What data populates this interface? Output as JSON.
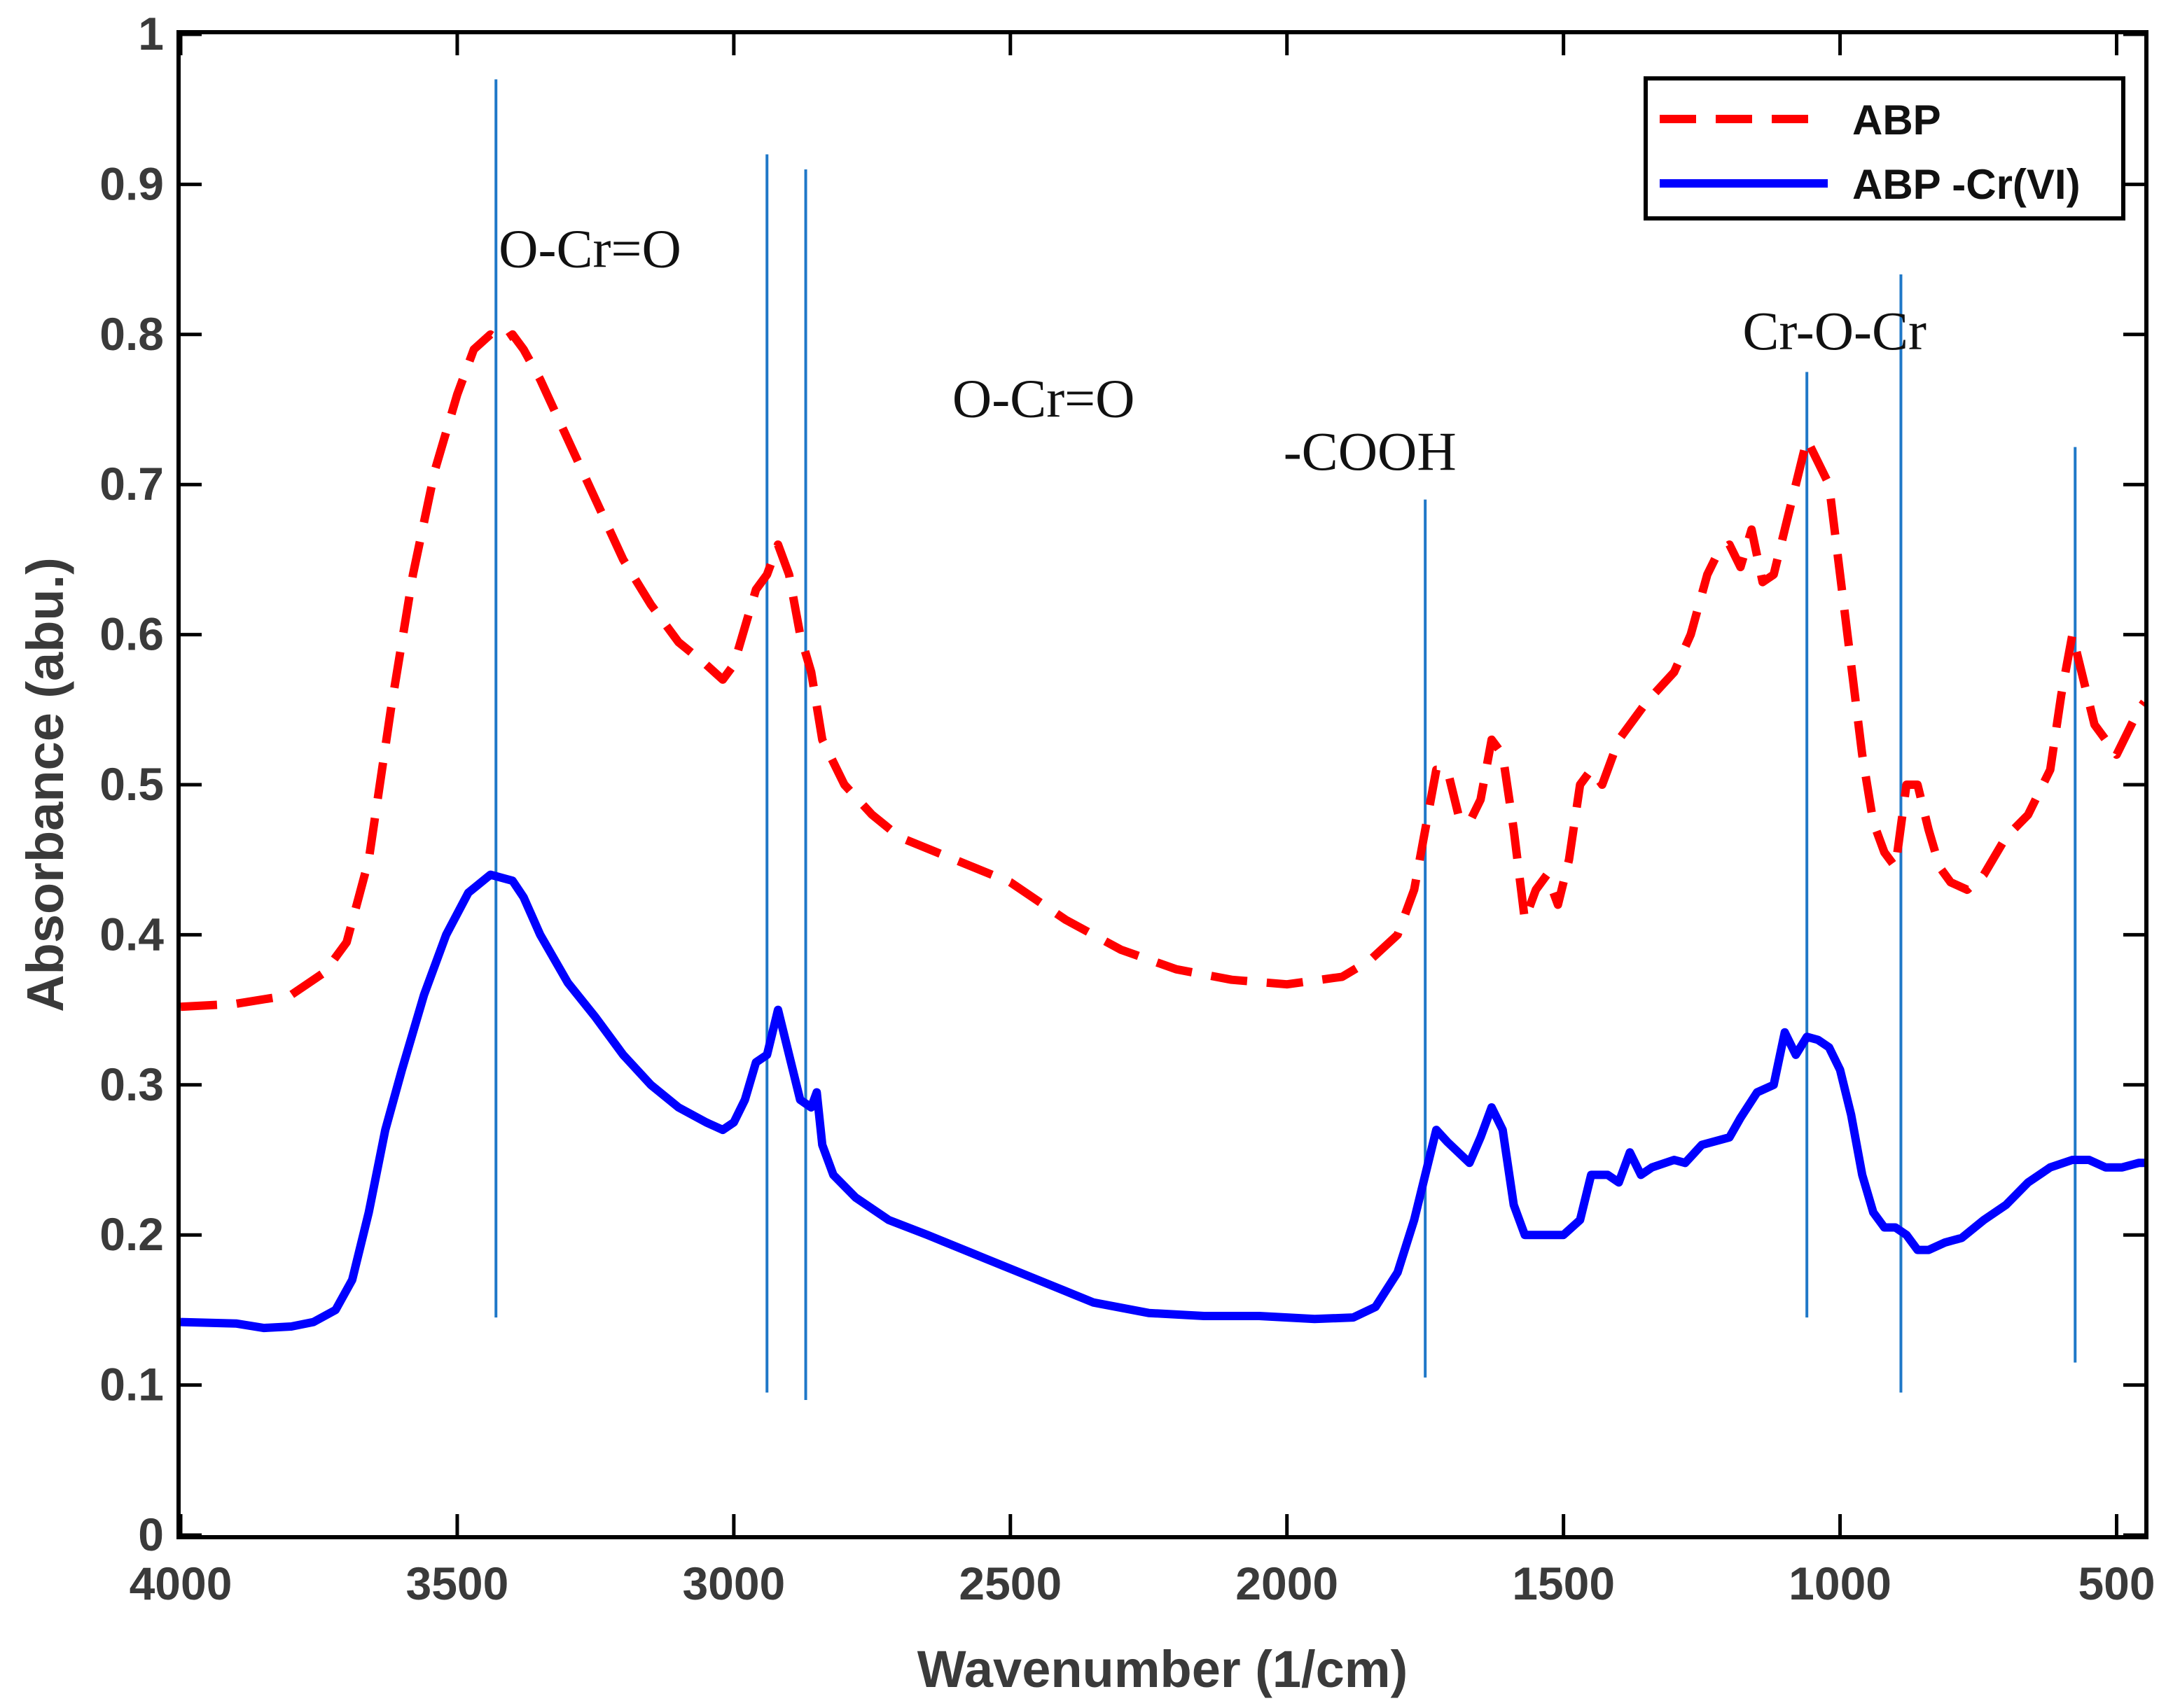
{
  "chart_data": {
    "type": "line",
    "title": "",
    "xlabel": "Wavenumber (1/cm)",
    "ylabel": "Absorbance (abu.)",
    "xlim": [
      4000,
      450
    ],
    "ylim": [
      0,
      1
    ],
    "x_reversed": true,
    "x_ticks": [
      4000,
      3500,
      3000,
      2500,
      2000,
      1500,
      1000,
      500
    ],
    "x_tick_labels": [
      "4000",
      "3500",
      "3000",
      "2500",
      "2000",
      "1500",
      "1000",
      "500"
    ],
    "y_ticks": [
      0,
      0.1,
      0.2,
      0.3,
      0.4,
      0.5,
      0.6,
      0.7,
      0.8,
      0.9,
      1
    ],
    "y_tick_labels": [
      "0",
      "0.1",
      "0.2",
      "0.3",
      "0.4",
      "0.5",
      "0.6",
      "0.7",
      "0.8",
      "0.9",
      "1"
    ],
    "grid": false,
    "legend_position": "top-right",
    "series": [
      {
        "name": "ABP",
        "color": "#ff0000",
        "style": "dashed",
        "points": [
          [
            4000,
            0.352
          ],
          [
            3900,
            0.354
          ],
          [
            3800,
            0.36
          ],
          [
            3740,
            0.375
          ],
          [
            3700,
            0.395
          ],
          [
            3660,
            0.45
          ],
          [
            3620,
            0.55
          ],
          [
            3580,
            0.64
          ],
          [
            3540,
            0.71
          ],
          [
            3500,
            0.76
          ],
          [
            3470,
            0.79
          ],
          [
            3440,
            0.8
          ],
          [
            3420,
            0.795
          ],
          [
            3400,
            0.8
          ],
          [
            3380,
            0.79
          ],
          [
            3350,
            0.77
          ],
          [
            3300,
            0.73
          ],
          [
            3250,
            0.69
          ],
          [
            3200,
            0.65
          ],
          [
            3150,
            0.62
          ],
          [
            3100,
            0.595
          ],
          [
            3050,
            0.58
          ],
          [
            3020,
            0.57
          ],
          [
            3000,
            0.58
          ],
          [
            2980,
            0.605
          ],
          [
            2960,
            0.63
          ],
          [
            2940,
            0.64
          ],
          [
            2920,
            0.66
          ],
          [
            2900,
            0.64
          ],
          [
            2880,
            0.6
          ],
          [
            2860,
            0.575
          ],
          [
            2840,
            0.53
          ],
          [
            2800,
            0.5
          ],
          [
            2750,
            0.48
          ],
          [
            2700,
            0.465
          ],
          [
            2600,
            0.45
          ],
          [
            2500,
            0.435
          ],
          [
            2400,
            0.41
          ],
          [
            2300,
            0.39
          ],
          [
            2200,
            0.377
          ],
          [
            2100,
            0.37
          ],
          [
            2000,
            0.367
          ],
          [
            1900,
            0.372
          ],
          [
            1850,
            0.383
          ],
          [
            1800,
            0.4
          ],
          [
            1770,
            0.43
          ],
          [
            1750,
            0.47
          ],
          [
            1730,
            0.51
          ],
          [
            1710,
            0.51
          ],
          [
            1690,
            0.48
          ],
          [
            1670,
            0.475
          ],
          [
            1650,
            0.49
          ],
          [
            1630,
            0.53
          ],
          [
            1610,
            0.52
          ],
          [
            1590,
            0.47
          ],
          [
            1570,
            0.41
          ],
          [
            1550,
            0.43
          ],
          [
            1530,
            0.44
          ],
          [
            1510,
            0.42
          ],
          [
            1490,
            0.45
          ],
          [
            1470,
            0.5
          ],
          [
            1450,
            0.51
          ],
          [
            1430,
            0.5
          ],
          [
            1400,
            0.53
          ],
          [
            1350,
            0.555
          ],
          [
            1300,
            0.575
          ],
          [
            1270,
            0.6
          ],
          [
            1240,
            0.64
          ],
          [
            1220,
            0.655
          ],
          [
            1200,
            0.66
          ],
          [
            1180,
            0.645
          ],
          [
            1160,
            0.67
          ],
          [
            1140,
            0.635
          ],
          [
            1120,
            0.64
          ],
          [
            1100,
            0.67
          ],
          [
            1080,
            0.7
          ],
          [
            1060,
            0.73
          ],
          [
            1040,
            0.715
          ],
          [
            1020,
            0.7
          ],
          [
            1000,
            0.64
          ],
          [
            980,
            0.58
          ],
          [
            960,
            0.52
          ],
          [
            940,
            0.475
          ],
          [
            920,
            0.455
          ],
          [
            900,
            0.445
          ],
          [
            880,
            0.5
          ],
          [
            860,
            0.5
          ],
          [
            840,
            0.47
          ],
          [
            820,
            0.445
          ],
          [
            800,
            0.435
          ],
          [
            770,
            0.43
          ],
          [
            740,
            0.44
          ],
          [
            700,
            0.465
          ],
          [
            660,
            0.48
          ],
          [
            620,
            0.51
          ],
          [
            600,
            0.56
          ],
          [
            580,
            0.6
          ],
          [
            560,
            0.57
          ],
          [
            540,
            0.54
          ],
          [
            520,
            0.53
          ],
          [
            500,
            0.52
          ],
          [
            480,
            0.535
          ],
          [
            460,
            0.55
          ],
          [
            450,
            0.555
          ]
        ]
      },
      {
        "name": "ABP -Cr(VI)",
        "color": "#0000ff",
        "style": "solid",
        "points": [
          [
            4000,
            0.142
          ],
          [
            3900,
            0.141
          ],
          [
            3850,
            0.138
          ],
          [
            3800,
            0.139
          ],
          [
            3760,
            0.142
          ],
          [
            3720,
            0.15
          ],
          [
            3690,
            0.17
          ],
          [
            3660,
            0.215
          ],
          [
            3630,
            0.27
          ],
          [
            3600,
            0.31
          ],
          [
            3560,
            0.36
          ],
          [
            3520,
            0.4
          ],
          [
            3480,
            0.428
          ],
          [
            3440,
            0.44
          ],
          [
            3400,
            0.436
          ],
          [
            3380,
            0.425
          ],
          [
            3350,
            0.4
          ],
          [
            3300,
            0.368
          ],
          [
            3250,
            0.345
          ],
          [
            3200,
            0.32
          ],
          [
            3150,
            0.3
          ],
          [
            3100,
            0.285
          ],
          [
            3050,
            0.275
          ],
          [
            3020,
            0.27
          ],
          [
            3000,
            0.275
          ],
          [
            2980,
            0.29
          ],
          [
            2960,
            0.315
          ],
          [
            2940,
            0.32
          ],
          [
            2920,
            0.35
          ],
          [
            2900,
            0.32
          ],
          [
            2880,
            0.29
          ],
          [
            2860,
            0.285
          ],
          [
            2850,
            0.295
          ],
          [
            2840,
            0.26
          ],
          [
            2820,
            0.24
          ],
          [
            2780,
            0.225
          ],
          [
            2720,
            0.21
          ],
          [
            2650,
            0.2
          ],
          [
            2550,
            0.185
          ],
          [
            2450,
            0.17
          ],
          [
            2350,
            0.155
          ],
          [
            2250,
            0.148
          ],
          [
            2150,
            0.146
          ],
          [
            2050,
            0.146
          ],
          [
            1950,
            0.144
          ],
          [
            1880,
            0.145
          ],
          [
            1840,
            0.152
          ],
          [
            1800,
            0.175
          ],
          [
            1770,
            0.21
          ],
          [
            1750,
            0.24
          ],
          [
            1730,
            0.27
          ],
          [
            1710,
            0.262
          ],
          [
            1690,
            0.255
          ],
          [
            1670,
            0.248
          ],
          [
            1650,
            0.265
          ],
          [
            1630,
            0.285
          ],
          [
            1610,
            0.27
          ],
          [
            1590,
            0.22
          ],
          [
            1570,
            0.2
          ],
          [
            1540,
            0.2
          ],
          [
            1500,
            0.2
          ],
          [
            1470,
            0.21
          ],
          [
            1450,
            0.24
          ],
          [
            1420,
            0.24
          ],
          [
            1400,
            0.235
          ],
          [
            1380,
            0.255
          ],
          [
            1360,
            0.24
          ],
          [
            1340,
            0.245
          ],
          [
            1300,
            0.25
          ],
          [
            1280,
            0.248
          ],
          [
            1250,
            0.26
          ],
          [
            1200,
            0.265
          ],
          [
            1180,
            0.278
          ],
          [
            1150,
            0.295
          ],
          [
            1120,
            0.3
          ],
          [
            1100,
            0.335
          ],
          [
            1080,
            0.32
          ],
          [
            1060,
            0.332
          ],
          [
            1040,
            0.33
          ],
          [
            1020,
            0.325
          ],
          [
            1000,
            0.31
          ],
          [
            980,
            0.28
          ],
          [
            960,
            0.24
          ],
          [
            940,
            0.215
          ],
          [
            920,
            0.205
          ],
          [
            900,
            0.205
          ],
          [
            880,
            0.2
          ],
          [
            860,
            0.19
          ],
          [
            840,
            0.19
          ],
          [
            810,
            0.195
          ],
          [
            780,
            0.198
          ],
          [
            740,
            0.21
          ],
          [
            700,
            0.22
          ],
          [
            660,
            0.235
          ],
          [
            620,
            0.245
          ],
          [
            580,
            0.25
          ],
          [
            550,
            0.25
          ],
          [
            520,
            0.245
          ],
          [
            490,
            0.245
          ],
          [
            460,
            0.248
          ],
          [
            450,
            0.248
          ]
        ]
      }
    ],
    "reference_lines": [
      {
        "x": 3430,
        "y_from": 0.145,
        "y_to": 0.97,
        "color": "#1f78c8"
      },
      {
        "x": 2940,
        "y_from": 0.095,
        "y_to": 0.92,
        "color": "#1f78c8"
      },
      {
        "x": 2870,
        "y_from": 0.09,
        "y_to": 0.91,
        "color": "#1f78c8"
      },
      {
        "x": 1750,
        "y_from": 0.105,
        "y_to": 0.69,
        "color": "#1f78c8"
      },
      {
        "x": 1060,
        "y_from": 0.145,
        "y_to": 0.775,
        "color": "#1f78c8"
      },
      {
        "x": 890,
        "y_from": 0.095,
        "y_to": 0.84,
        "color": "#1f78c8"
      },
      {
        "x": 575,
        "y_from": 0.115,
        "y_to": 0.725,
        "color": "#1f78c8"
      }
    ],
    "annotations": [
      {
        "text": "O-Cr=O",
        "x": 3260,
        "y": 0.845
      },
      {
        "text": "O-Cr=O",
        "x": 2440,
        "y": 0.745
      },
      {
        "text": "-COOH",
        "x": 1850,
        "y": 0.71
      },
      {
        "text": "Cr-O-Cr",
        "x": 1010,
        "y": 0.79
      }
    ]
  }
}
